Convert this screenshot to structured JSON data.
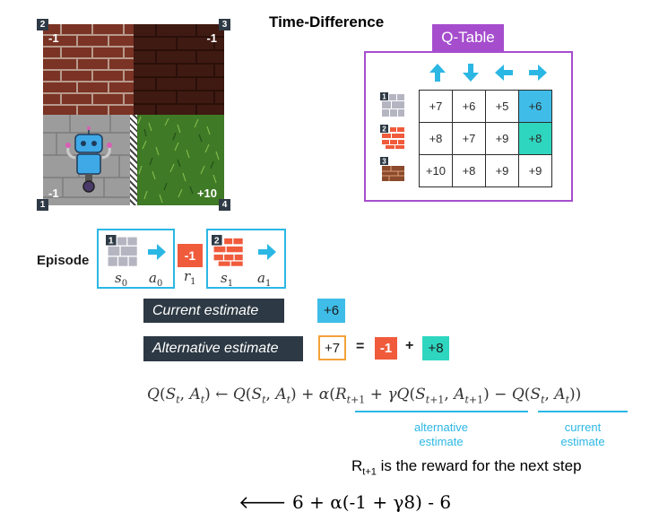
{
  "title": "Time-Difference",
  "grid": {
    "cells": [
      {
        "number": "2",
        "reward": "-1",
        "terrain": "brick"
      },
      {
        "number": "3",
        "reward": "-1",
        "terrain": "dark-brick"
      },
      {
        "number": "1",
        "reward": "-1",
        "terrain": "stone"
      },
      {
        "number": "4",
        "reward": "+10",
        "terrain": "grass"
      }
    ]
  },
  "q_table": {
    "label": "Q-Table",
    "actions": [
      "up-arrow-icon",
      "down-arrow-icon",
      "left-arrow-icon",
      "right-arrow-icon"
    ],
    "rows": [
      {
        "state": "1",
        "values": [
          "+7",
          "+6",
          "+5",
          "+6"
        ],
        "highlight_col": 3,
        "highlight_color": "#3fbde8"
      },
      {
        "state": "2",
        "values": [
          "+8",
          "+7",
          "+9",
          "+8"
        ],
        "highlight_col": 3,
        "highlight_color": "#2fd6bf"
      },
      {
        "state": "3",
        "values": [
          "+10",
          "+8",
          "+9",
          "+9"
        ],
        "highlight_col": null,
        "highlight_color": null
      }
    ],
    "border_color": "#a64dce"
  },
  "episode": {
    "label": "Episode",
    "state0_num": "1",
    "state1_num": "2",
    "reward": "-1",
    "symbols": {
      "s0": "s",
      "s0_sub": "0",
      "a0": "a",
      "a0_sub": "0",
      "r1": "r",
      "r1_sub": "1",
      "s1": "s",
      "s1_sub": "1",
      "a1": "a",
      "a1_sub": "1"
    }
  },
  "estimates": {
    "current_label": "Current estimate",
    "current_value": "+6",
    "alternative_label": "Alternative estimate",
    "alternative_value": "+7",
    "equals": "=",
    "reward_term": "-1",
    "plus": "+",
    "next_value": "+8"
  },
  "formula": {
    "alternative_note_line1": "alternative",
    "alternative_note_line2": "estimate",
    "current_note_line1": "current",
    "current_note_line2": "estimate"
  },
  "note": {
    "prefix": "R",
    "subscript": "t+1",
    "text": " is the reward for the next step"
  },
  "bottom_formula": {
    "arrow": "🡐",
    "expression": " 6 +  α(-1  +  γ8)  - 6"
  },
  "colors": {
    "accent_blue": "#2bb7e4",
    "teal": "#2fd6bf",
    "red": "#f05b3c",
    "purple": "#a64dce",
    "dark_label": "#2d3944",
    "orange": "#f2a23a"
  }
}
